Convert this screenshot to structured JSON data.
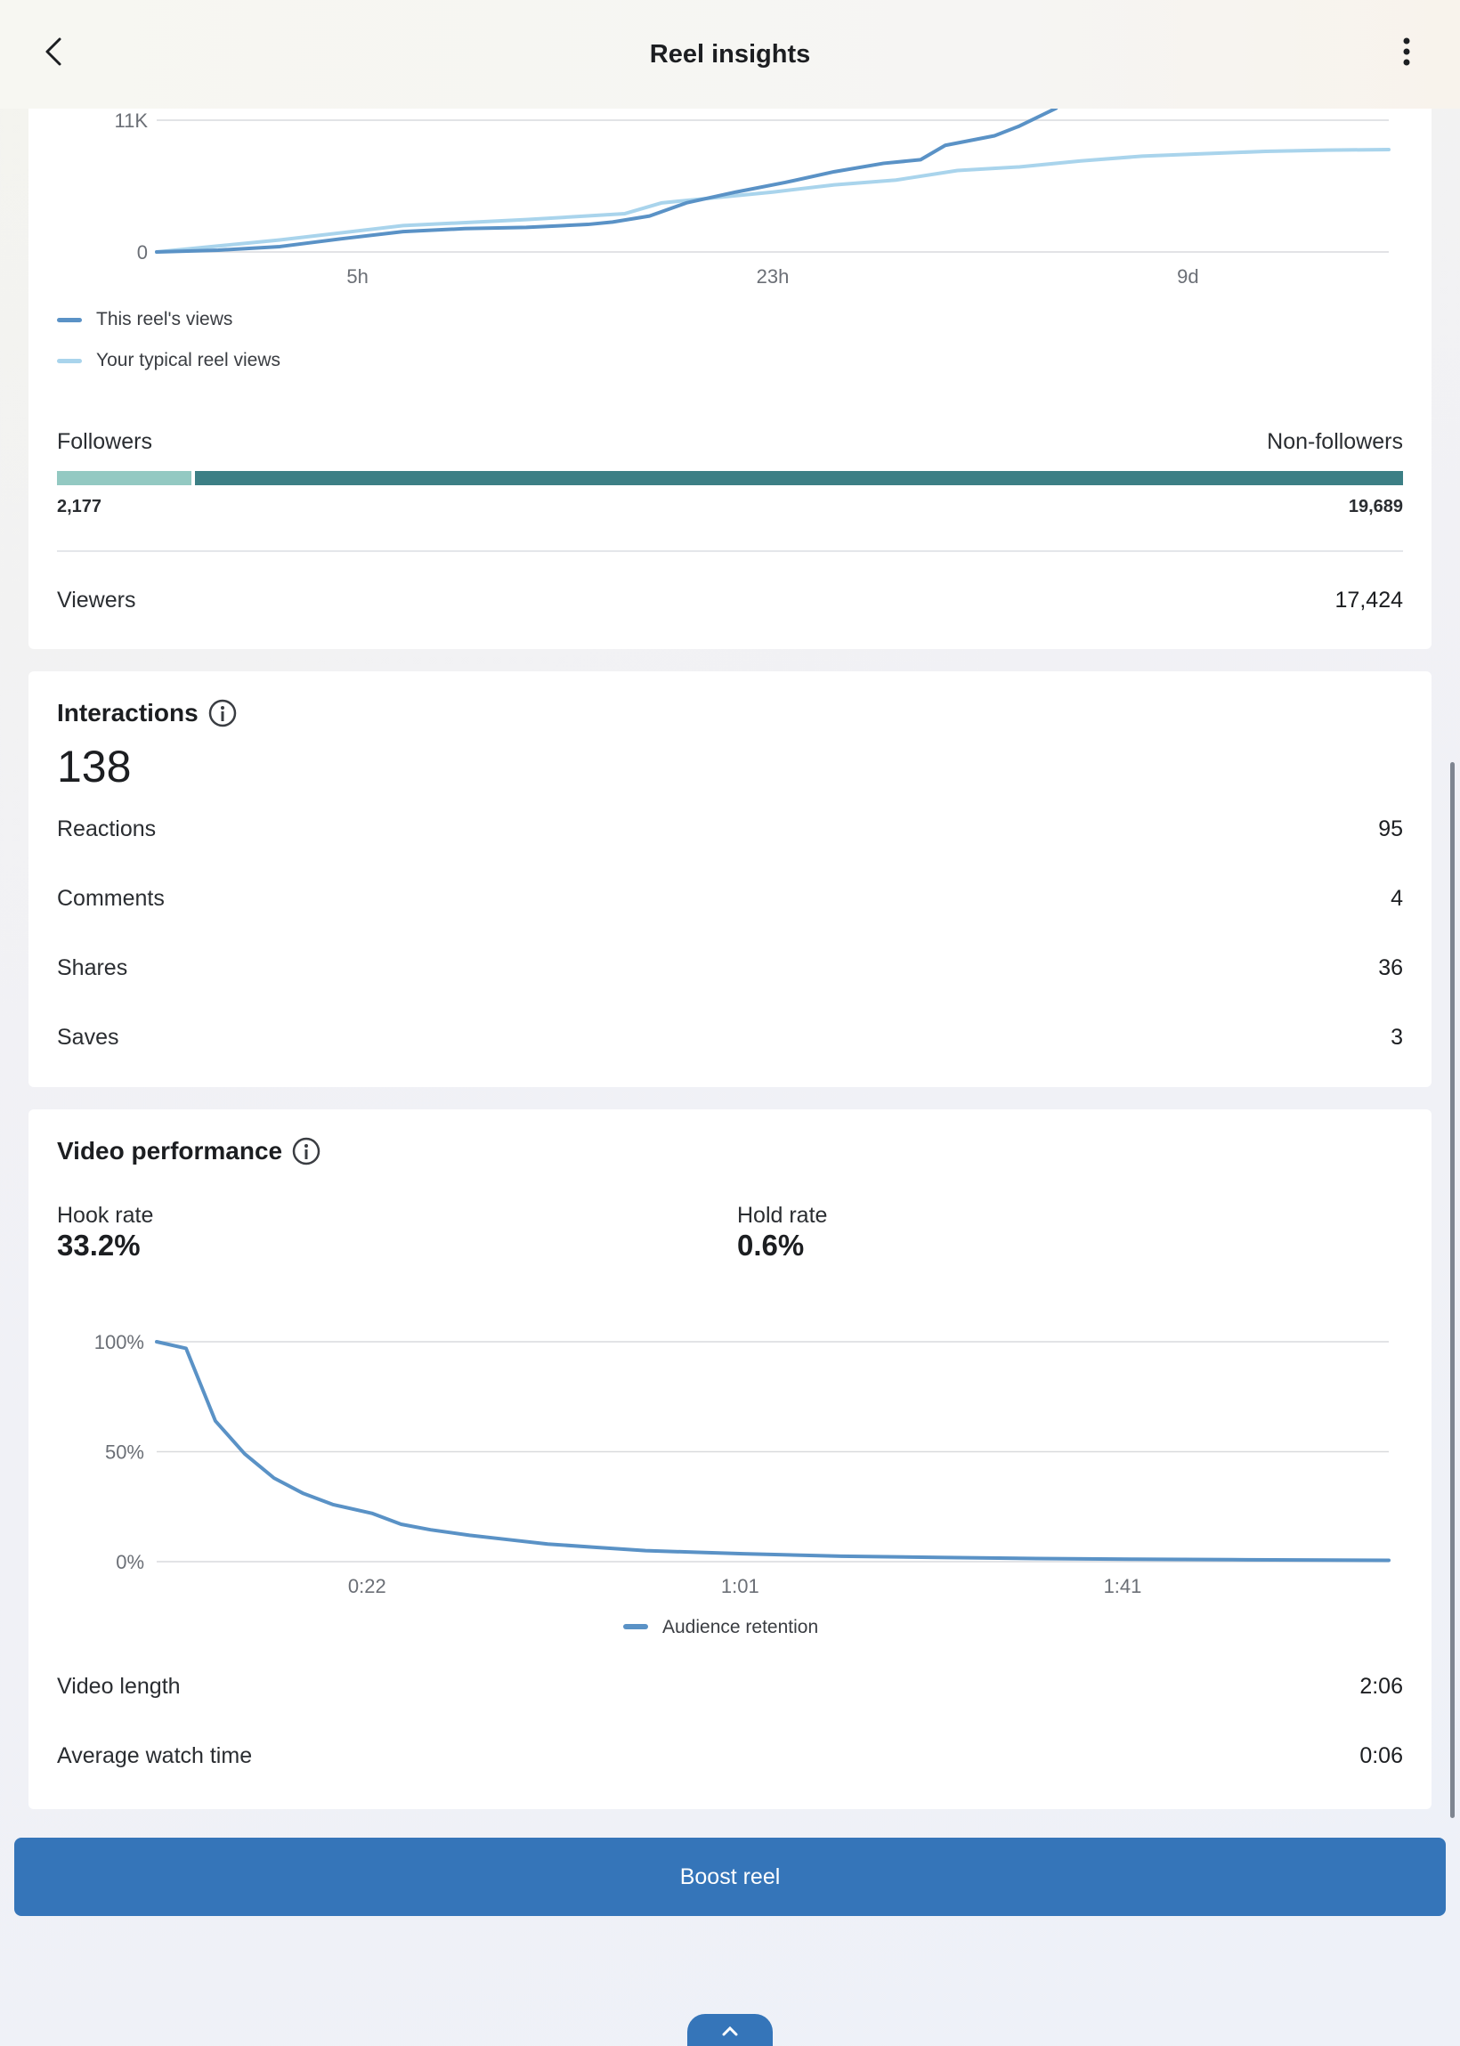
{
  "header": {
    "title": "Reel insights"
  },
  "views_chart": {
    "legend": [
      {
        "label": "This reel's views",
        "color": "#5a92c6"
      },
      {
        "label": "Your typical reel views",
        "color": "#a9d4ec"
      }
    ]
  },
  "audience": {
    "followers_label": "Followers",
    "non_followers_label": "Non-followers",
    "followers_value": "2,177",
    "non_followers_value": "19,689",
    "followers_share": 0.0996,
    "viewers_label": "Viewers",
    "viewers_value": "17,424"
  },
  "interactions": {
    "title": "Interactions",
    "total": "138",
    "rows": [
      {
        "label": "Reactions",
        "value": "95"
      },
      {
        "label": "Comments",
        "value": "4"
      },
      {
        "label": "Shares",
        "value": "36"
      },
      {
        "label": "Saves",
        "value": "3"
      }
    ]
  },
  "video_performance": {
    "title": "Video performance",
    "hook_label": "Hook rate",
    "hook_value": "33.2%",
    "hold_label": "Hold rate",
    "hold_value": "0.6%",
    "rows": [
      {
        "label": "Video length",
        "value": "2:06"
      },
      {
        "label": "Average watch time",
        "value": "0:06"
      }
    ]
  },
  "boost_label": "Boost reel",
  "colors": {
    "accent": "#3575b9",
    "series_primary": "#5a92c6",
    "series_typical": "#a9d4ec",
    "followers": "#93c9c2",
    "non_followers": "#3c7f85"
  },
  "chart_data": [
    {
      "type": "line",
      "x_ticks": [
        "5h",
        "23h",
        "9d"
      ],
      "y_ticks": [
        "0",
        "11K"
      ],
      "ylim": [
        0,
        11000
      ],
      "grid": true,
      "legend_position": "bottom-left",
      "series": [
        {
          "name": "This reel's views",
          "color": "#5a92c6",
          "x": [
            0,
            0.05,
            0.1,
            0.15,
            0.2,
            0.25,
            0.3,
            0.35,
            0.37,
            0.4,
            0.43,
            0.47,
            0.51,
            0.55,
            0.59,
            0.62,
            0.64,
            0.66,
            0.68,
            0.7,
            0.73
          ],
          "y": [
            0,
            150,
            450,
            1100,
            1700,
            1950,
            2050,
            2300,
            2500,
            3000,
            4100,
            5000,
            5800,
            6700,
            7400,
            7700,
            8900,
            9300,
            9700,
            10500,
            12000
          ]
        },
        {
          "name": "Your typical reel views",
          "color": "#a9d4ec",
          "x": [
            0,
            0.1,
            0.2,
            0.3,
            0.38,
            0.41,
            0.45,
            0.5,
            0.55,
            0.6,
            0.65,
            0.7,
            0.75,
            0.8,
            0.85,
            0.9,
            0.95,
            1.0
          ],
          "y": [
            0,
            1000,
            2200,
            2700,
            3200,
            4100,
            4500,
            5000,
            5600,
            6000,
            6800,
            7100,
            7600,
            8000,
            8200,
            8400,
            8500,
            8550
          ]
        }
      ]
    },
    {
      "type": "line",
      "x_ticks": [
        "0:22",
        "1:01",
        "1:41"
      ],
      "y_ticks": [
        "100%",
        "50%",
        "0%"
      ],
      "ylim": [
        0,
        100
      ],
      "grid": true,
      "legend_position": "bottom-center",
      "series": [
        {
          "name": "Audience retention",
          "color": "#5a92c6",
          "x": [
            0,
            3,
            6,
            9,
            12,
            15,
            18,
            22,
            25,
            28,
            32,
            36,
            40,
            45,
            50,
            55,
            60,
            70,
            80,
            90,
            100,
            110,
            120,
            126
          ],
          "y": [
            100,
            97,
            64,
            49,
            38,
            31,
            26,
            22,
            17,
            14.5,
            12,
            10,
            8,
            6.5,
            5,
            4.3,
            3.6,
            2.5,
            1.9,
            1.4,
            1.1,
            0.9,
            0.7,
            0.6
          ]
        }
      ]
    }
  ]
}
